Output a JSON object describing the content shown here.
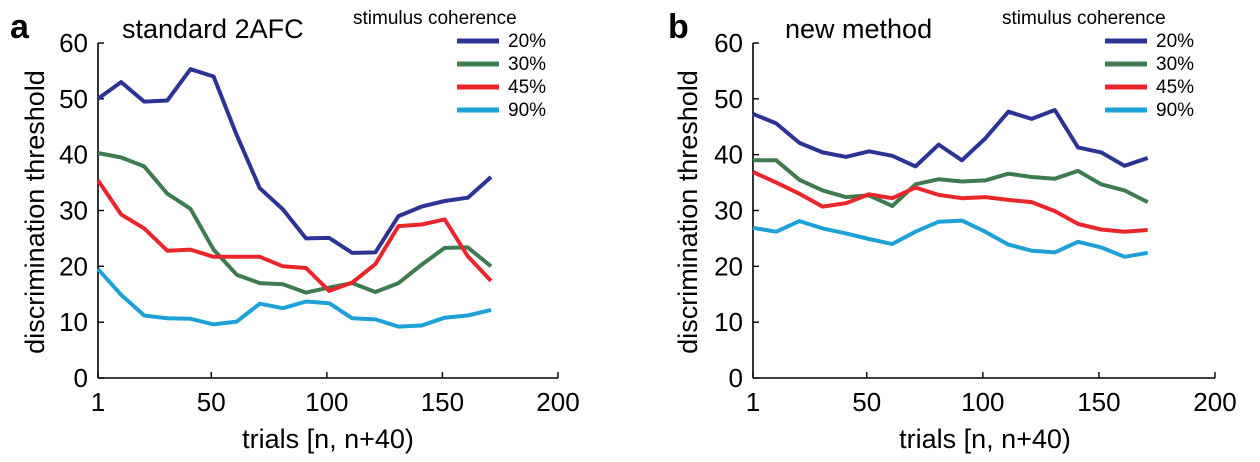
{
  "chart_data": [
    {
      "type": "line",
      "panel_letter": "a",
      "title": "standard 2AFC",
      "legend_title": "stimulus coherence",
      "xlabel": "trials [n, n+40)",
      "ylabel": "discrimination threshold",
      "xlim": [
        1,
        200
      ],
      "ylim": [
        0,
        60
      ],
      "xticks": [
        1,
        50,
        100,
        150,
        200
      ],
      "yticks": [
        0,
        10,
        20,
        30,
        40,
        50,
        60
      ],
      "x": [
        1,
        11,
        21,
        31,
        41,
        51,
        61,
        71,
        81,
        91,
        101,
        111,
        121,
        131,
        141,
        151,
        161,
        171
      ],
      "series": [
        {
          "name": "20%",
          "color": "#2b3494",
          "values": [
            50.0,
            53.0,
            49.5,
            49.7,
            55.3,
            54.0,
            43.5,
            34.0,
            30.2,
            25.0,
            25.1,
            22.4,
            22.5,
            29.0,
            30.7,
            31.7,
            32.3,
            36.0
          ]
        },
        {
          "name": "30%",
          "color": "#3e7b4f",
          "values": [
            40.3,
            39.5,
            37.9,
            33.0,
            30.3,
            23.0,
            18.5,
            17.0,
            16.8,
            15.3,
            16.2,
            17.0,
            15.4,
            17.0,
            20.3,
            23.3,
            23.4,
            20.0
          ]
        },
        {
          "name": "45%",
          "color": "#e8262b",
          "values": [
            35.4,
            29.3,
            26.8,
            22.8,
            23.0,
            21.7,
            21.7,
            21.7,
            20.0,
            19.7,
            15.6,
            17.1,
            20.4,
            27.2,
            27.5,
            28.4,
            21.8,
            17.4
          ]
        },
        {
          "name": "90%",
          "color": "#1ea1d6",
          "values": [
            19.5,
            14.9,
            11.2,
            10.7,
            10.6,
            9.6,
            10.1,
            13.3,
            12.5,
            13.7,
            13.4,
            10.7,
            10.5,
            9.2,
            9.4,
            10.8,
            11.2,
            12.2
          ]
        }
      ]
    },
    {
      "type": "line",
      "panel_letter": "b",
      "title": "new method",
      "legend_title": "stimulus coherence",
      "xlabel": "trials [n, n+40)",
      "ylabel": "discrimination threshold",
      "xlim": [
        1,
        200
      ],
      "ylim": [
        0,
        60
      ],
      "xticks": [
        1,
        50,
        100,
        150,
        200
      ],
      "yticks": [
        0,
        10,
        20,
        30,
        40,
        50,
        60
      ],
      "x": [
        1,
        11,
        21,
        31,
        41,
        51,
        61,
        71,
        81,
        91,
        101,
        111,
        121,
        131,
        141,
        151,
        161,
        171
      ],
      "series": [
        {
          "name": "20%",
          "color": "#2b3494",
          "values": [
            47.3,
            45.6,
            42.1,
            40.4,
            39.6,
            40.6,
            39.8,
            37.9,
            41.8,
            39.0,
            42.9,
            47.7,
            46.4,
            48.0,
            41.3,
            40.4,
            38.0,
            39.4
          ]
        },
        {
          "name": "30%",
          "color": "#3e7b4f",
          "values": [
            39.0,
            39.0,
            35.5,
            33.6,
            32.4,
            32.7,
            30.8,
            34.7,
            35.6,
            35.2,
            35.4,
            36.6,
            36.0,
            35.7,
            37.1,
            34.7,
            33.6,
            31.5
          ]
        },
        {
          "name": "45%",
          "color": "#e8262b",
          "values": [
            36.9,
            35.0,
            33.0,
            30.7,
            31.3,
            32.9,
            32.2,
            34.1,
            32.8,
            32.2,
            32.4,
            31.9,
            31.5,
            29.9,
            27.6,
            26.6,
            26.2,
            26.5
          ]
        },
        {
          "name": "90%",
          "color": "#1ea1d6",
          "values": [
            26.9,
            26.2,
            28.1,
            26.8,
            25.9,
            24.9,
            24.0,
            26.2,
            28.0,
            28.2,
            26.2,
            23.9,
            22.8,
            22.5,
            24.4,
            23.4,
            21.7,
            22.4
          ]
        }
      ]
    }
  ]
}
